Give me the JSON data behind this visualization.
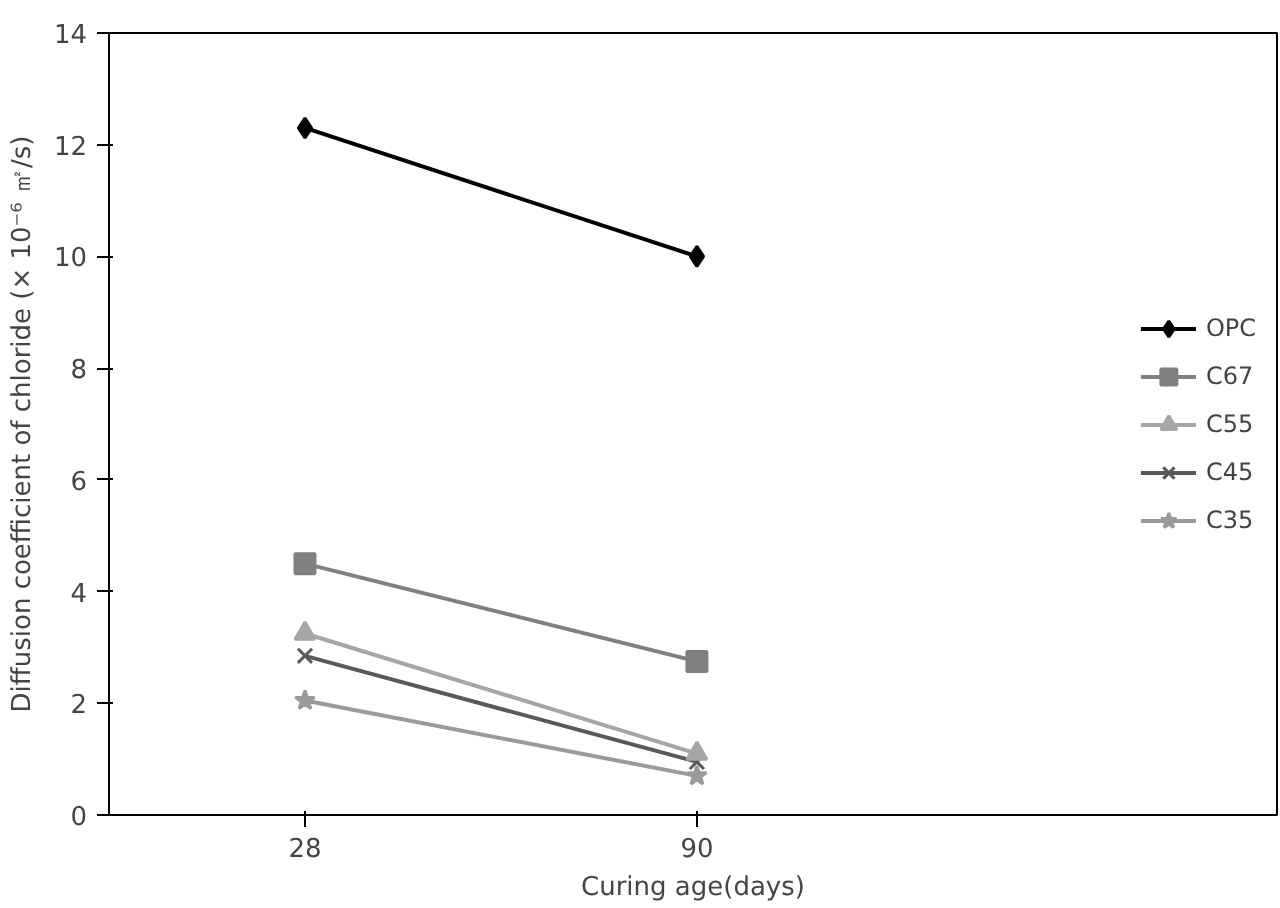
{
  "chart_data": {
    "type": "line",
    "xlabel": "Curing age(days)",
    "ylabel": "Diffusion coefficient of chloride (× 10⁻⁶ ㎡/s)",
    "categories": [
      "28",
      "90"
    ],
    "series": [
      {
        "name": "OPC",
        "color": "#000000",
        "marker": "diamond",
        "values": [
          12.3,
          10.0
        ]
      },
      {
        "name": "C67",
        "color": "#808080",
        "marker": "square",
        "values": [
          4.5,
          2.75
        ]
      },
      {
        "name": "C55",
        "color": "#a6a6a6",
        "marker": "triangle",
        "values": [
          3.25,
          1.1
        ]
      },
      {
        "name": "C45",
        "color": "#595959",
        "marker": "cross",
        "values": [
          2.85,
          0.95
        ]
      },
      {
        "name": "C35",
        "color": "#9a9a9a",
        "marker": "star",
        "values": [
          2.05,
          0.7
        ]
      }
    ],
    "ylim": [
      0,
      14
    ],
    "yticks": [
      0,
      2,
      4,
      6,
      8,
      10,
      12,
      14
    ],
    "grid": false,
    "legend": "right"
  }
}
